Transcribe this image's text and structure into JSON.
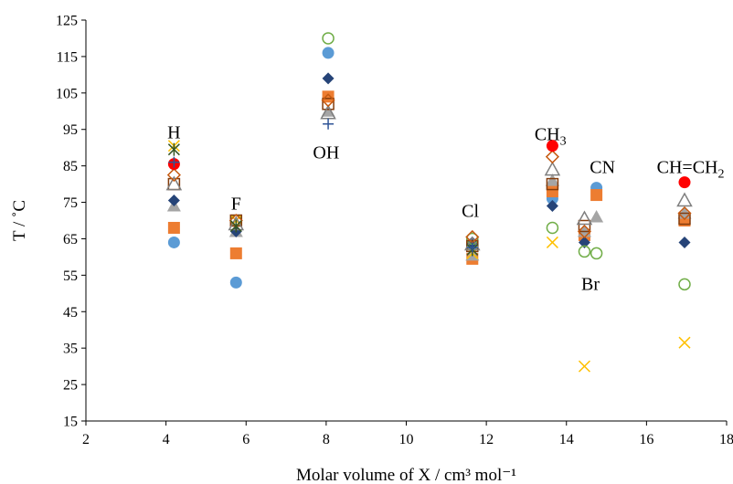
{
  "chart_data": {
    "type": "scatter",
    "xlabel": "Molar volume of X / cm³ mol⁻¹",
    "ylabel": "T / ˚C",
    "xlim": [
      2,
      18
    ],
    "ylim": [
      15,
      125
    ],
    "xticks": [
      2,
      4,
      6,
      8,
      10,
      12,
      14,
      16,
      18
    ],
    "yticks": [
      15,
      25,
      35,
      45,
      55,
      65,
      75,
      85,
      95,
      105,
      115,
      125
    ],
    "grid": false,
    "annotations": [
      {
        "text": "H",
        "x": 4.2,
        "y": 92.5
      },
      {
        "text": "F",
        "x": 5.75,
        "y": 73
      },
      {
        "text": "OH",
        "x": 8.0,
        "y": 87
      },
      {
        "text": "Cl",
        "x": 11.6,
        "y": 71
      },
      {
        "text": "CH",
        "sub": "3",
        "x": 13.6,
        "y": 92
      },
      {
        "text": "CN",
        "x": 14.9,
        "y": 83
      },
      {
        "text": "Br",
        "x": 14.6,
        "y": 51
      },
      {
        "text": "CH=CH",
        "sub": "2",
        "x": 17.1,
        "y": 83
      }
    ],
    "series": [
      {
        "marker": "circle-filled",
        "color": "#5b9bd5",
        "points": [
          [
            4.2,
            64
          ],
          [
            5.75,
            53
          ],
          [
            8.05,
            116
          ],
          [
            11.65,
            63
          ],
          [
            13.65,
            76
          ],
          [
            14.75,
            79
          ],
          [
            16.95,
            71
          ]
        ]
      },
      {
        "marker": "square-filled",
        "color": "#ed7d31",
        "points": [
          [
            4.2,
            68
          ],
          [
            5.75,
            61
          ],
          [
            8.05,
            104
          ],
          [
            11.65,
            59.5
          ],
          [
            13.65,
            78
          ],
          [
            14.45,
            66
          ],
          [
            14.75,
            77
          ],
          [
            16.95,
            70
          ]
        ]
      },
      {
        "marker": "triangle-filled",
        "color": "#a5a5a5",
        "points": [
          [
            4.2,
            74
          ],
          [
            5.75,
            67
          ],
          [
            8.05,
            100
          ],
          [
            11.65,
            60.5
          ],
          [
            13.65,
            81
          ],
          [
            14.45,
            67
          ],
          [
            14.75,
            71
          ],
          [
            16.95,
            72
          ]
        ]
      },
      {
        "marker": "diamond-filled",
        "color": "#264478",
        "points": [
          [
            4.2,
            75.5
          ],
          [
            5.75,
            67
          ],
          [
            8.05,
            109
          ],
          [
            11.65,
            64
          ],
          [
            13.65,
            74
          ],
          [
            14.45,
            64
          ],
          [
            16.95,
            64
          ]
        ]
      },
      {
        "marker": "circle-open",
        "color": "#70ad47",
        "points": [
          [
            5.75,
            70
          ],
          [
            8.05,
            120
          ],
          [
            11.65,
            65
          ],
          [
            13.65,
            68
          ],
          [
            14.45,
            61.5
          ],
          [
            14.75,
            61
          ],
          [
            16.95,
            52.5
          ]
        ]
      },
      {
        "marker": "x",
        "color": "#ffc000",
        "points": [
          [
            4.2,
            90.5
          ],
          [
            5.75,
            70
          ],
          [
            11.65,
            61
          ],
          [
            13.65,
            64
          ],
          [
            14.45,
            30
          ],
          [
            16.95,
            36.5
          ]
        ]
      },
      {
        "marker": "square-open",
        "color": "#843c0c",
        "points": [
          [
            4.2,
            80
          ],
          [
            5.75,
            70
          ],
          [
            8.05,
            102
          ],
          [
            11.65,
            63
          ],
          [
            13.65,
            80
          ],
          [
            14.45,
            68.5
          ],
          [
            16.95,
            70.5
          ]
        ]
      },
      {
        "marker": "triangle-open",
        "color": "#7f7f7f",
        "points": [
          [
            4.2,
            80
          ],
          [
            5.75,
            69
          ],
          [
            8.05,
            99.5
          ],
          [
            11.65,
            63.5
          ],
          [
            13.65,
            84
          ],
          [
            14.45,
            70.5
          ],
          [
            16.95,
            75.5
          ]
        ]
      },
      {
        "marker": "diamond-open",
        "color": "#c55a11",
        "points": [
          [
            4.2,
            82.5
          ],
          [
            5.75,
            70
          ],
          [
            8.05,
            103
          ],
          [
            11.65,
            65.5
          ],
          [
            13.65,
            87.5
          ],
          [
            14.45,
            67
          ],
          [
            16.95,
            72
          ]
        ]
      },
      {
        "marker": "circle-filled",
        "color": "#ff0000",
        "points": [
          [
            4.2,
            85.5
          ],
          [
            13.65,
            90.5
          ],
          [
            16.95,
            80.5
          ]
        ]
      },
      {
        "marker": "star",
        "color": "#375623",
        "points": [
          [
            4.2,
            89.5
          ],
          [
            5.75,
            68.5
          ],
          [
            11.65,
            62
          ]
        ]
      },
      {
        "marker": "plus",
        "color": "#2f5597",
        "points": [
          [
            4.2,
            86
          ],
          [
            8.05,
            96.5
          ],
          [
            11.65,
            62.5
          ]
        ]
      }
    ]
  }
}
